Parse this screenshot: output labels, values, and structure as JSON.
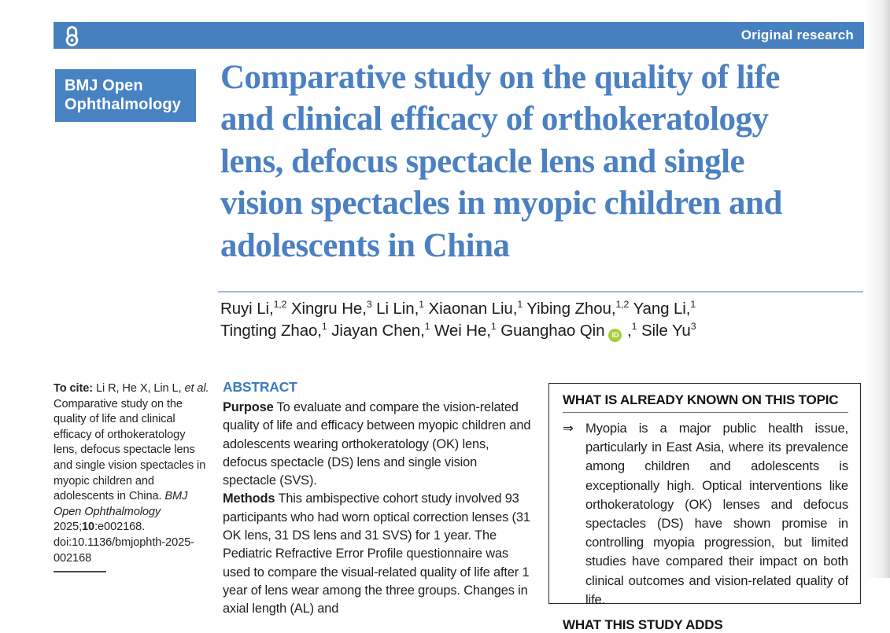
{
  "header_bar": {
    "label": "Original research"
  },
  "journal_badge": {
    "line1": "BMJ Open",
    "line2": "Ophthalmology"
  },
  "title": {
    "lines": [
      "Comparative study on the quality of life",
      "and clinical efficacy of orthokeratology",
      "lens, defocus spectacle lens and single",
      "vision spectacles in myopic children and",
      "adolescents in China"
    ]
  },
  "authors": {
    "line1": [
      {
        "t": "Ruyi Li,"
      },
      {
        "t": "1,2",
        "sup": true
      },
      {
        "t": " Xingru He,"
      },
      {
        "t": "3",
        "sup": true
      },
      {
        "t": " Li Lin,"
      },
      {
        "t": "1",
        "sup": true
      },
      {
        "t": " Xiaonan Liu,"
      },
      {
        "t": "1",
        "sup": true
      },
      {
        "t": " Yibing Zhou,"
      },
      {
        "t": "1,2",
        "sup": true
      },
      {
        "t": " Yang Li,"
      },
      {
        "t": "1",
        "sup": true
      }
    ],
    "line2a": [
      {
        "t": "Tingting Zhao,"
      },
      {
        "t": "1",
        "sup": true
      },
      {
        "t": " Jiayan Chen,"
      },
      {
        "t": "1",
        "sup": true
      },
      {
        "t": " Wei He,"
      },
      {
        "t": "1",
        "sup": true
      },
      {
        "t": " Guanghao Qin"
      }
    ],
    "orcid_label": "iD",
    "line2b": [
      {
        "t": " ,"
      },
      {
        "t": "1",
        "sup": true
      },
      {
        "t": " Sile Yu"
      },
      {
        "t": "3",
        "sup": true
      }
    ]
  },
  "cite": {
    "segments": [
      {
        "t": "To cite: ",
        "b": true
      },
      {
        "t": "Li R, He X, Lin L, "
      },
      {
        "t": "et al.",
        "i": true
      },
      {
        "t": " Comparative study on the quality of life and clinical efficacy of orthokeratology lens, defocus spectacle lens and single vision spectacles in myopic children and adolescents in China. "
      },
      {
        "t": "BMJ Open Ophthalmology",
        "i": true
      },
      {
        "t": " 2025;"
      },
      {
        "t": "10",
        "b": true
      },
      {
        "t": ":e002168. doi:10.1136/bmjophth-2025-002168"
      }
    ]
  },
  "abstract": {
    "heading": "ABSTRACT",
    "paragraphs": [
      [
        {
          "t": "Purpose",
          "b": true
        },
        {
          "t": "  To evaluate and compare the vision-related quality of life and efficacy between myopic children and adolescents wearing orthokeratology (OK) lens, defocus spectacle (DS) lens and single vision spectacle (SVS)."
        }
      ],
      [
        {
          "t": "Methods",
          "b": true
        },
        {
          "t": "  This ambispective cohort study involved 93 participants who had worn optical correction lenses (31 OK lens, 31 DS lens and 31 SVS) for 1 year. The Pediatric Refractive Error Profile questionnaire was used to compare the visual-related quality of life after 1 year of lens wear among the three groups. Changes in axial length (AL) and"
        }
      ]
    ]
  },
  "known_box": {
    "title_known": "WHAT IS ALREADY KNOWN ON THIS TOPIC",
    "bullet_glyph": "⇒",
    "known_points": [
      "Myopia is a major public health issue, particularly in East Asia, where its prevalence among children and adolescents is exceptionally high. Optical interventions like orthokeratology (OK) lenses and defocus spectacles (DS) have shown promise in controlling myopia progression, but limited studies have compared their impact on both clinical outcomes and vision-related quality of life."
    ],
    "title_adds": "WHAT THIS STUDY ADDS"
  },
  "colors": {
    "bar_blue": "#4780bf",
    "badge_blue": "#4782c3",
    "title_blue": "#4b80c2",
    "abstract_heading_blue": "#3d7bc2",
    "rule_blue": "#9ebde0",
    "orcid_green": "#a6ce39"
  }
}
